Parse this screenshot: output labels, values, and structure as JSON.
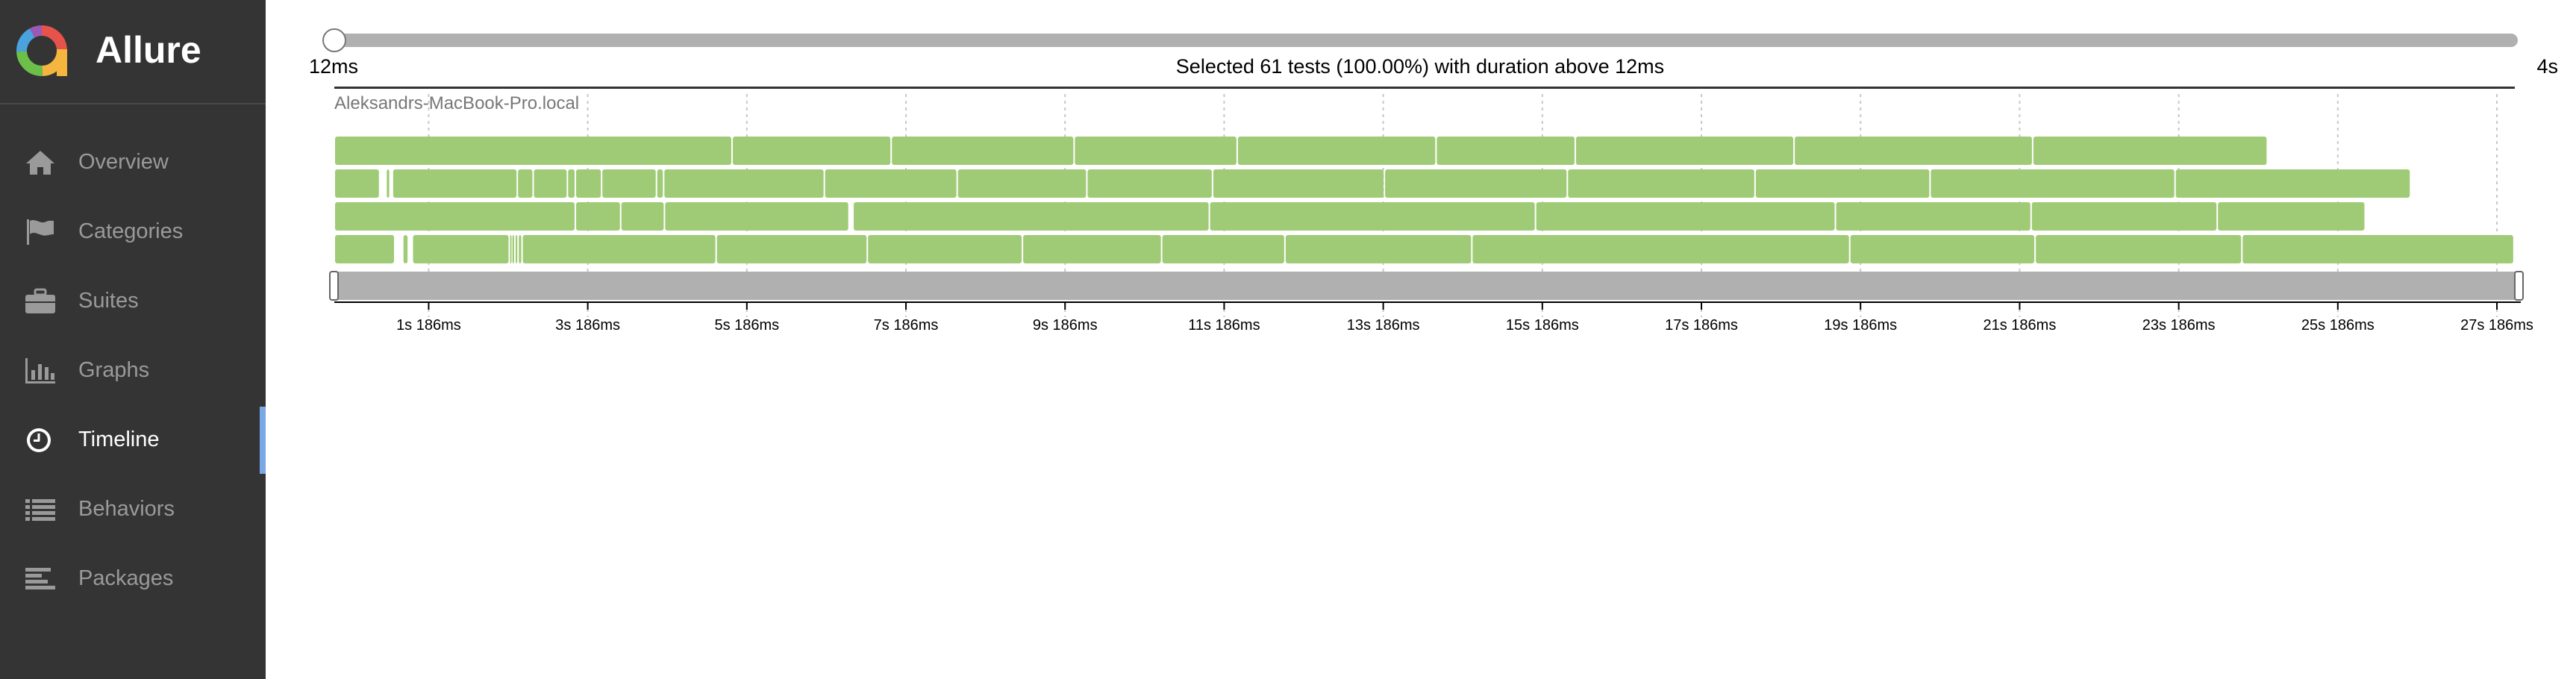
{
  "app": {
    "name": "Allure",
    "colors": {
      "sidebar": "#343434",
      "accent": "#7aa7e6",
      "test_passed": "#a0cb76",
      "logo": [
        "#e5534b",
        "#f4b63f",
        "#6cc04a",
        "#4aa3df",
        "#9b59b6"
      ]
    }
  },
  "sidebar": {
    "items": [
      {
        "label": "Overview",
        "icon": "home-icon",
        "active": false
      },
      {
        "label": "Categories",
        "icon": "flag-icon",
        "active": false
      },
      {
        "label": "Suites",
        "icon": "briefcase-icon",
        "active": false
      },
      {
        "label": "Graphs",
        "icon": "bar-chart-icon",
        "active": false
      },
      {
        "label": "Timeline",
        "icon": "clock-icon",
        "active": true
      },
      {
        "label": "Behaviors",
        "icon": "list-icon",
        "active": false
      },
      {
        "label": "Packages",
        "icon": "align-left-icon",
        "active": false
      }
    ]
  },
  "timeline": {
    "filter": {
      "min_label": "12ms",
      "max_label": "4s",
      "summary": "Selected 61 tests (100.00%) with duration above 12ms"
    },
    "host": "Aleksandrs-MacBook-Pro.local",
    "ticks": [
      "1s 186ms",
      "3s 186ms",
      "5s 186ms",
      "7s 186ms",
      "9s 186ms",
      "11s 186ms",
      "13s 186ms",
      "15s 186ms",
      "17s 186ms",
      "19s 186ms",
      "21s 186ms",
      "23s 186ms",
      "25s 186ms",
      "27s 186ms"
    ],
    "lanes": [
      [
        [
          0,
          5.0
        ],
        [
          5.0,
          7.0
        ],
        [
          7.0,
          9.3
        ],
        [
          9.3,
          11.35
        ],
        [
          11.35,
          13.85
        ],
        [
          13.85,
          15.6
        ],
        [
          15.6,
          18.35
        ],
        [
          18.35,
          21.35
        ],
        [
          21.35,
          24.3
        ]
      ],
      [
        [
          0,
          0.57
        ],
        [
          0.65,
          0.7
        ],
        [
          0.73,
          2.3
        ],
        [
          2.3,
          2.5
        ],
        [
          2.5,
          2.93
        ],
        [
          2.93,
          3.03
        ],
        [
          3.03,
          3.36
        ],
        [
          3.36,
          4.05
        ],
        [
          4.05,
          4.14
        ],
        [
          4.14,
          6.16
        ],
        [
          6.16,
          7.83
        ],
        [
          7.83,
          9.46
        ],
        [
          9.46,
          11.04
        ],
        [
          11.04,
          13.2
        ],
        [
          13.2,
          15.5
        ],
        [
          15.5,
          17.86
        ],
        [
          17.86,
          20.06
        ],
        [
          20.06,
          23.14
        ],
        [
          23.14,
          26.1
        ]
      ],
      [
        [
          0,
          3.03
        ],
        [
          3.03,
          3.6
        ],
        [
          3.6,
          4.15
        ],
        [
          4.15,
          6.47
        ],
        [
          6.52,
          11.0
        ],
        [
          11.0,
          15.1
        ],
        [
          15.1,
          18.87
        ],
        [
          18.87,
          21.33
        ],
        [
          21.33,
          23.67
        ],
        [
          23.67,
          25.53
        ]
      ],
      [
        [
          0,
          0.76
        ],
        [
          0.86,
          0.93
        ],
        [
          0.98,
          2.2
        ],
        [
          2.2,
          2.23
        ],
        [
          2.23,
          2.27
        ],
        [
          2.27,
          2.31
        ],
        [
          2.31,
          2.36
        ],
        [
          2.36,
          4.8
        ],
        [
          4.8,
          6.7
        ],
        [
          6.7,
          8.65
        ],
        [
          8.65,
          10.4
        ],
        [
          10.4,
          11.95
        ],
        [
          11.95,
          14.3
        ],
        [
          14.3,
          19.05
        ],
        [
          19.05,
          21.38
        ],
        [
          21.38,
          23.98
        ],
        [
          23.98,
          27.4
        ]
      ]
    ]
  }
}
